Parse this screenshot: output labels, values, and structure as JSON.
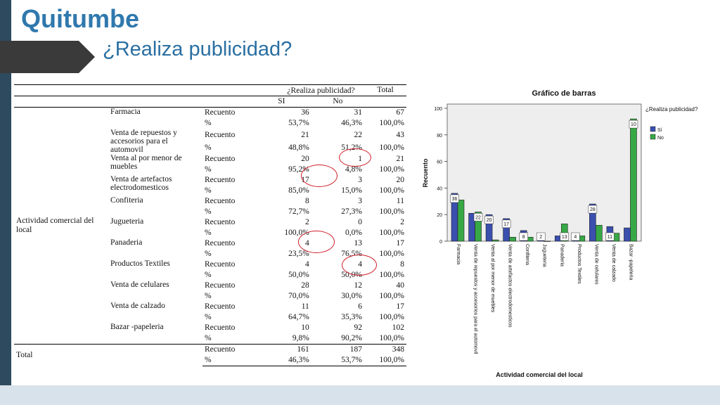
{
  "slide": {
    "title": "Quitumbe",
    "subtitle": "¿Realiza publicidad?"
  },
  "table": {
    "header_question": "¿Realiza publicidad?",
    "header_total": "Total",
    "header_si": "SI",
    "header_no": "No",
    "row_group_label": "Actividad comercial del local",
    "recuento_label": "Recuento",
    "pct_label": "%",
    "rows": [
      {
        "name": "Farmacia",
        "count": [
          "36",
          "31",
          "67"
        ],
        "pct": [
          "53,7%",
          "46,3%",
          "100,0%"
        ]
      },
      {
        "name": "Venta de repuestos y accesorios para el automovil",
        "count": [
          "21",
          "22",
          "43"
        ],
        "pct": [
          "48,8%",
          "51,2%",
          "100,0%"
        ]
      },
      {
        "name": "Venta al por menor de muebles",
        "count": [
          "20",
          "1",
          "21"
        ],
        "pct": [
          "95,2%",
          "4,8%",
          "100,0%"
        ]
      },
      {
        "name": "Venta de artefactos electrodomesticos",
        "count": [
          "17",
          "3",
          "20"
        ],
        "pct": [
          "85,0%",
          "15,0%",
          "100,0%"
        ]
      },
      {
        "name": "Confiteria",
        "count": [
          "8",
          "3",
          "11"
        ],
        "pct": [
          "72,7%",
          "27,3%",
          "100,0%"
        ]
      },
      {
        "name": "Jugueteria",
        "count": [
          "2",
          "0",
          "2"
        ],
        "pct": [
          "100,0%",
          "0,0%",
          "100,0%"
        ]
      },
      {
        "name": "Panaderia",
        "count": [
          "4",
          "13",
          "17"
        ],
        "pct": [
          "23,5%",
          "76,5%",
          "100,0%"
        ]
      },
      {
        "name": "Productos Textiles",
        "count": [
          "4",
          "4",
          "8"
        ],
        "pct": [
          "50,0%",
          "50,0%",
          "100,0%"
        ]
      },
      {
        "name": "Venta de celulares",
        "count": [
          "28",
          "12",
          "40"
        ],
        "pct": [
          "70,0%",
          "30,0%",
          "100,0%"
        ]
      },
      {
        "name": "Venta de calzado",
        "count": [
          "11",
          "6",
          "17"
        ],
        "pct": [
          "64,7%",
          "35,3%",
          "100,0%"
        ]
      },
      {
        "name": "Bazar -papeleria",
        "count": [
          "10",
          "92",
          "102"
        ],
        "pct": [
          "9,8%",
          "90,2%",
          "100,0%"
        ]
      }
    ],
    "total": {
      "name": "Total",
      "count": [
        "161",
        "187",
        "348"
      ],
      "pct": [
        "46,3%",
        "53,7%",
        "100,0%"
      ]
    }
  },
  "chart_data": {
    "type": "bar",
    "title": "Gráfico de barras",
    "xlabel": "Actividad comercial del local",
    "ylabel": "Recuento",
    "ylim": [
      0,
      100
    ],
    "yticks": [
      0,
      20,
      40,
      60,
      80,
      100
    ],
    "legend_title": "¿Realiza publicidad?",
    "legend_position": "top-right",
    "categories": [
      "Farmacia",
      "Venta de repuestos y accesorios para el automovil",
      "Venta al por menor de muebles",
      "Venta de artefactos electrodomesticos",
      "Confiteria",
      "Jugueteria",
      "Panaderia",
      "Productos Textiles",
      "Venta de celulares",
      "Venta de calzado",
      "Bazar -papeleria"
    ],
    "series": [
      {
        "name": "Sí",
        "color": "#3a4fae",
        "values": [
          36,
          21,
          20,
          17,
          8,
          2,
          4,
          4,
          28,
          11,
          10
        ]
      },
      {
        "name": "No",
        "color": "#37a846",
        "values": [
          31,
          22,
          1,
          3,
          3,
          0,
          13,
          4,
          12,
          6,
          92
        ]
      }
    ],
    "data_labels": [
      36,
      22,
      20,
      17,
      8,
      2,
      13,
      4,
      28,
      11,
      10,
      92
    ]
  }
}
